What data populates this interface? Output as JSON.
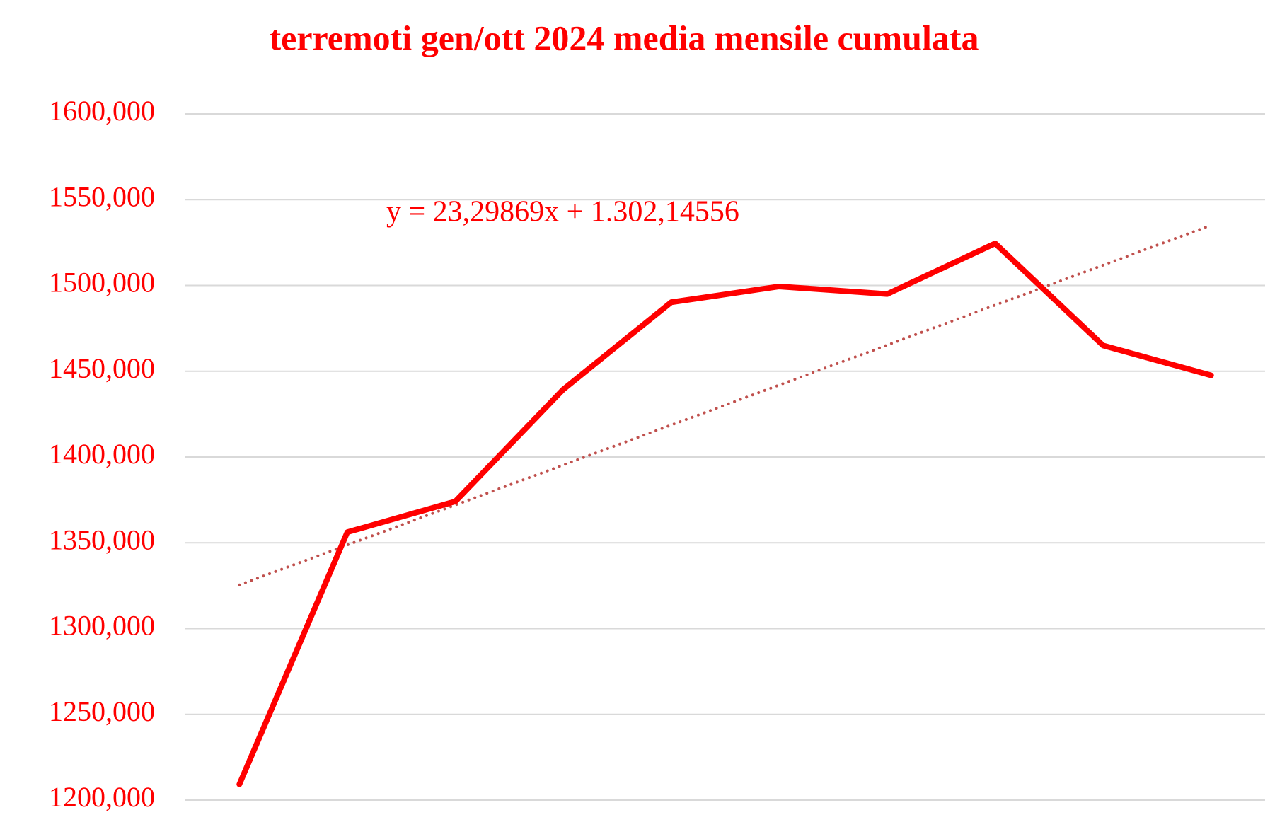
{
  "chart_data": {
    "type": "line",
    "title": "terremoti gen/ott 2024 media mensile cumulata",
    "annotation": "y = 23,29869x + 1.302,14556",
    "categories": [
      null,
      null,
      null,
      null,
      null,
      null,
      null,
      null,
      null,
      null
    ],
    "series": [
      {
        "name": "media mensile cumulata",
        "color": "#ff0000",
        "style": "solid",
        "values": [
          1209.2,
          1356.2,
          1374.1,
          1439.4,
          1490.2,
          1499.4,
          1495.0,
          1524.5,
          1465.0,
          1447.6
        ]
      },
      {
        "name": "trend",
        "color": "#c0504d",
        "style": "dotted",
        "values": [
          1325.44,
          1348.74,
          1372.04,
          1395.34,
          1418.64,
          1441.94,
          1465.24,
          1488.54,
          1511.84,
          1535.13
        ]
      }
    ],
    "ylim": [
      1200,
      1600
    ],
    "yticks": [
      {
        "value": 1200,
        "label": "1200,000"
      },
      {
        "value": 1250,
        "label": "1250,000"
      },
      {
        "value": 1300,
        "label": "1300,000"
      },
      {
        "value": 1350,
        "label": "1350,000"
      },
      {
        "value": 1400,
        "label": "1400,000"
      },
      {
        "value": 1450,
        "label": "1450,000"
      },
      {
        "value": 1500,
        "label": "1500,000"
      },
      {
        "value": 1550,
        "label": "1550,000"
      },
      {
        "value": 1600,
        "label": "1600,000"
      }
    ],
    "grid": true,
    "legend": false
  }
}
